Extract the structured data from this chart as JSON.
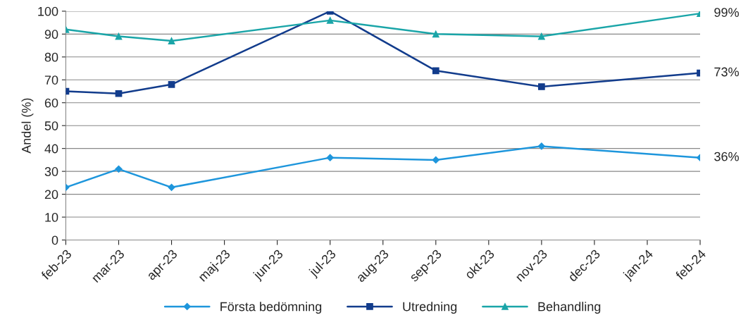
{
  "chart_data": {
    "type": "line",
    "ylabel": "Andel (%)",
    "categories": [
      "feb-23",
      "mar-23",
      "apr-23",
      "maj-23",
      "jun-23",
      "jul-23",
      "aug-23",
      "sep-23",
      "okt-23",
      "nov-23",
      "dec-23",
      "jan-24",
      "feb-24"
    ],
    "series": [
      {
        "name": "Första bedömning",
        "color": "#1e96dc",
        "marker": "diamond",
        "values": [
          23,
          31,
          23,
          null,
          null,
          36,
          null,
          35,
          null,
          41,
          null,
          null,
          36
        ],
        "value_labels": [
          null,
          null,
          null,
          null,
          null,
          null,
          null,
          null,
          null,
          null,
          null,
          null,
          "36%"
        ]
      },
      {
        "name": "Utredning",
        "color": "#123c8c",
        "marker": "square",
        "values": [
          65,
          64,
          68,
          null,
          null,
          100,
          null,
          74,
          null,
          67,
          null,
          null,
          73
        ],
        "value_labels": [
          null,
          null,
          null,
          null,
          null,
          null,
          null,
          null,
          null,
          null,
          null,
          null,
          "73%"
        ]
      },
      {
        "name": "Behandling",
        "color": "#1aa5a8",
        "marker": "triangle",
        "values": [
          92,
          89,
          87,
          null,
          null,
          96,
          null,
          90,
          null,
          89,
          null,
          null,
          99
        ],
        "value_labels": [
          null,
          null,
          null,
          null,
          null,
          null,
          null,
          null,
          null,
          null,
          null,
          null,
          "99%"
        ]
      }
    ],
    "ylim": [
      0,
      100
    ],
    "yticks": [
      0,
      10,
      20,
      30,
      40,
      50,
      60,
      70,
      80,
      90,
      100
    ],
    "grid": "y",
    "legend": "bottom",
    "line_style": "solid"
  }
}
